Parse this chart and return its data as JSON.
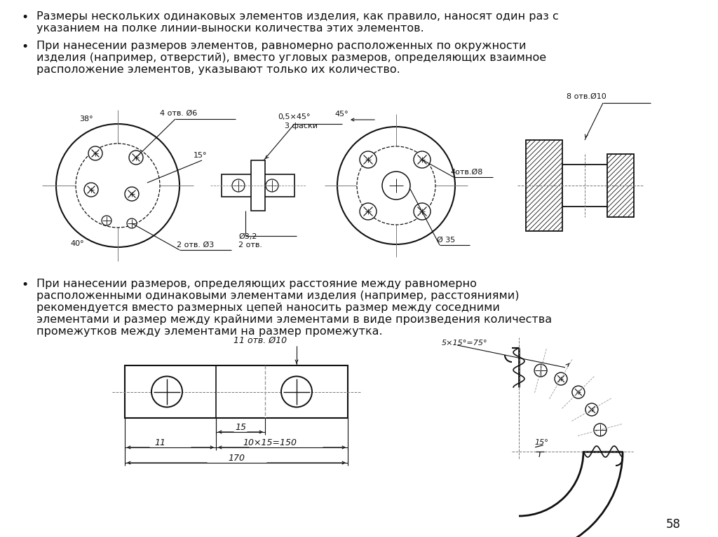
{
  "bg_color": "#ffffff",
  "text_color": "#111111",
  "bullet1_line1": "Размеры нескольких одинаковых элементов изделия, как правило, наносят один раз с",
  "bullet1_line2": "указанием на полке линии-выноски количества этих элементов.",
  "bullet2_line1": "При нанесении размеров элементов, равномерно расположенных по окружности",
  "bullet2_line2": "изделия (например, отверстий), вместо угловых размеров, определяющих взаимное",
  "bullet2_line3": "расположение элементов, указывают только их количество.",
  "bullet3_line1": "При нанесении размеров, определяющих расстояние между равномерно",
  "bullet3_line2": "расположенными одинаковыми элементами изделия (например, расстояниями)",
  "bullet3_line3": "рекомендуется вместо размерных цепей наносить размер между соседними",
  "bullet3_line4": "элементами и размер между крайними элементами в виде произведения количества",
  "bullet3_line5": "промежутков между элементами на размер промежутка.",
  "page_number": "58"
}
